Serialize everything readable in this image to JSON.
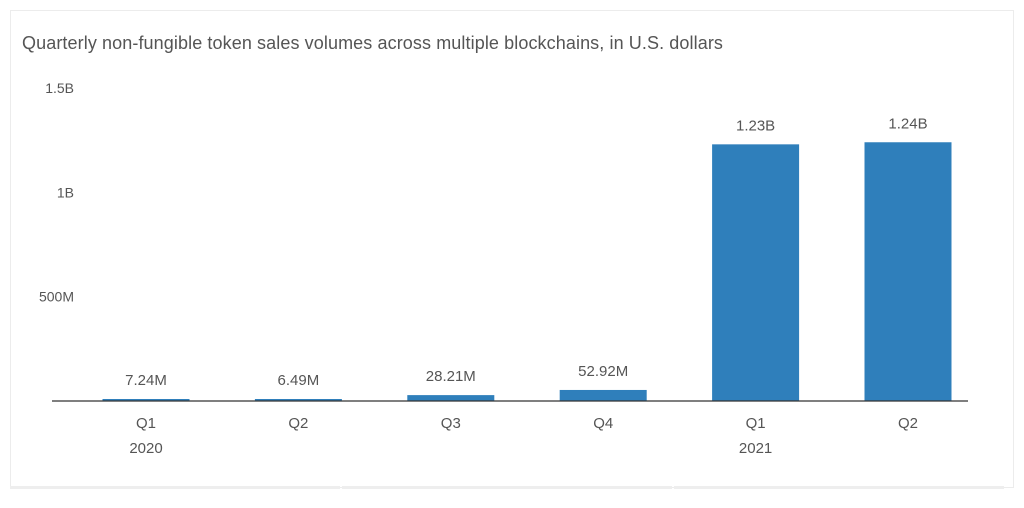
{
  "chart_data": {
    "type": "bar",
    "title": "Quarterly non-fungible token sales volumes across multiple blockchains, in U.S. dollars",
    "xlabel": "",
    "ylabel": "",
    "categories": [
      "Q1",
      "Q2",
      "Q3",
      "Q4",
      "Q1",
      "Q2"
    ],
    "category_years": [
      "2020",
      "",
      "",
      "",
      "2021",
      ""
    ],
    "values": [
      7240000,
      6490000,
      28210000,
      52920000,
      1230000000,
      1240000000
    ],
    "value_labels": [
      "7.24M",
      "6.49M",
      "28.21M",
      "52.92M",
      "1.23B",
      "1.24B"
    ],
    "y_ticks": [
      500000000,
      1000000000,
      1500000000
    ],
    "y_tick_labels": [
      "500M",
      "1B",
      "1.5B"
    ],
    "ylim": [
      0,
      1500000000
    ],
    "grid": false,
    "legend": "none",
    "colors": {
      "bar": "#2f7fbb",
      "axis": "#333333",
      "text": "#555555"
    }
  }
}
